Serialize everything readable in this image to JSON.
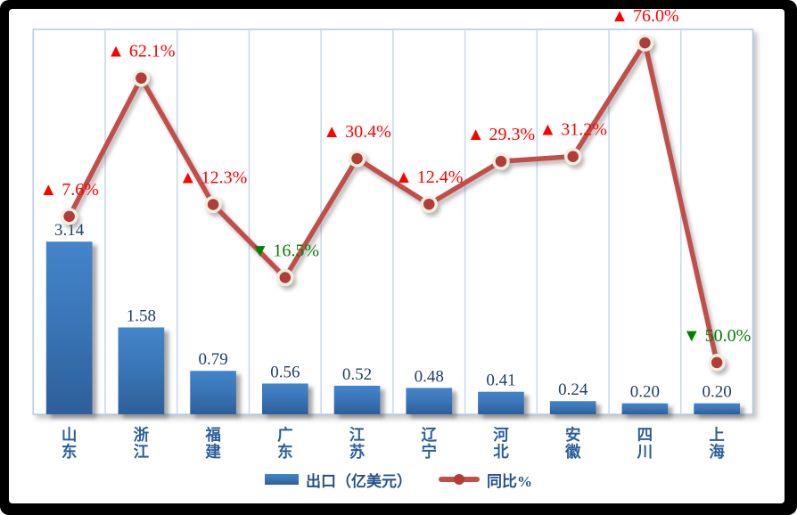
{
  "chart_data": {
    "type": "combo",
    "title": "",
    "categories": [
      "山东",
      "浙江",
      "福建",
      "广东",
      "江苏",
      "辽宁",
      "河北",
      "安徽",
      "四川",
      "上海"
    ],
    "series": [
      {
        "name": "出口（亿美元）",
        "kind": "bar",
        "values": [
          3.14,
          1.58,
          0.79,
          0.56,
          0.52,
          0.48,
          0.41,
          0.24,
          0.2,
          0.2
        ],
        "value_labels": [
          "3.14",
          "1.58",
          "0.79",
          "0.56",
          "0.52",
          "0.48",
          "0.41",
          "0.24",
          "0.20",
          "0.20"
        ]
      },
      {
        "name": "同比%",
        "kind": "line",
        "values": [
          7.6,
          62.1,
          12.3,
          -16.5,
          30.4,
          12.4,
          29.3,
          31.2,
          76.0,
          -50.0
        ],
        "point_labels": [
          {
            "text": "7.6%",
            "dir": "up"
          },
          {
            "text": "62.1%",
            "dir": "up"
          },
          {
            "text": "12.3%",
            "dir": "up"
          },
          {
            "text": "16.5%",
            "dir": "down"
          },
          {
            "text": "30.4%",
            "dir": "up"
          },
          {
            "text": "12.4%",
            "dir": "up"
          },
          {
            "text": "29.3%",
            "dir": "up"
          },
          {
            "text": "31.2%",
            "dir": "up"
          },
          {
            "text": "76.0%",
            "dir": "up"
          },
          {
            "text": "50.0%",
            "dir": "down"
          }
        ]
      }
    ],
    "symbols": {
      "up": "▲",
      "down": "▼"
    },
    "colors": {
      "bar_top": "#4484c9",
      "bar_mid": "#3a76b8",
      "bar_bottom": "#2d5f99",
      "line": "#c04f4b",
      "marker": "#b23c38",
      "marker_ring": "#f2eee2",
      "up": "#fe0000",
      "down": "#008000",
      "value_text": "#1f3f6e",
      "category_text": "#2d5f9b",
      "legend_text": "#24528a",
      "grid": "#c9daf0",
      "plot_border": "#b6cbe6",
      "frame": "#000000"
    },
    "layout": {
      "bar_ylim": [
        0,
        7
      ],
      "line_ylim": [
        -70.4,
        81.3
      ],
      "grid": "vertical",
      "legend_position": "bottom",
      "xlabel": "",
      "ylabel": ""
    }
  }
}
